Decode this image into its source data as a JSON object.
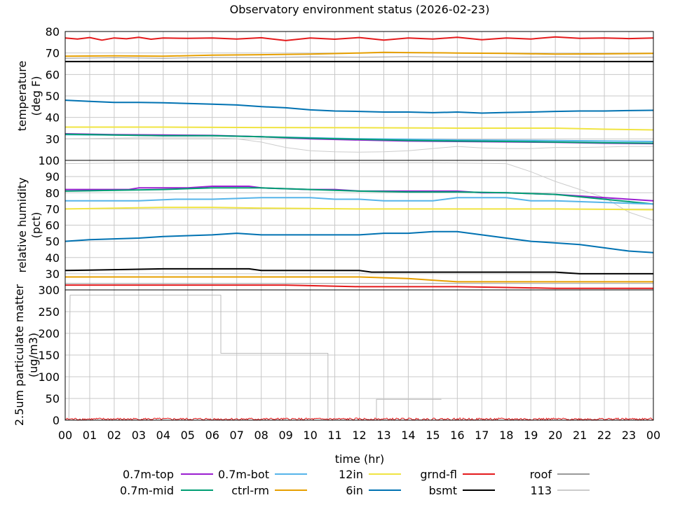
{
  "title": "Observatory environment status (2026-02-23)",
  "xlabel": "time (hr)",
  "x_ticks": [
    "00",
    "01",
    "02",
    "03",
    "04",
    "05",
    "06",
    "07",
    "08",
    "09",
    "10",
    "11",
    "12",
    "13",
    "14",
    "15",
    "16",
    "17",
    "18",
    "19",
    "20",
    "21",
    "22",
    "23",
    "00"
  ],
  "chart_data": [
    {
      "type": "line",
      "ylabel": [
        "temperature",
        "(deg F)"
      ],
      "ylim": [
        20,
        80
      ],
      "y_ticks": [
        30,
        40,
        50,
        60,
        70,
        80
      ],
      "grid": true,
      "series": [
        {
          "name": "grnd-fl",
          "color": "#e41a1c",
          "width": 2,
          "x": [
            0,
            0.5,
            1,
            1.5,
            2,
            2.5,
            3,
            3.5,
            4,
            5,
            6,
            7,
            8,
            9,
            10,
            11,
            12,
            13,
            14,
            15,
            16,
            17,
            18,
            19,
            20,
            21,
            22,
            23,
            24
          ],
          "y": [
            77,
            76.5,
            77.2,
            76,
            77,
            76.6,
            77.3,
            76.4,
            77,
            76.8,
            77,
            76.5,
            77.1,
            75.8,
            77,
            76.4,
            77.2,
            76,
            77,
            76.5,
            77.3,
            76.2,
            77,
            76.5,
            77.5,
            76.8,
            77,
            76.7,
            77
          ]
        },
        {
          "name": "ctrl-rm",
          "color": "#e69f00",
          "width": 2,
          "x": [
            0,
            2,
            4,
            6,
            8,
            10,
            12,
            13,
            14,
            16,
            18,
            20,
            22,
            24
          ],
          "y": [
            68.5,
            68.7,
            68.5,
            69,
            69.2,
            69.5,
            70,
            70.3,
            70.2,
            70,
            69.8,
            69.5,
            69.6,
            69.8
          ]
        },
        {
          "name": "roof",
          "color": "#999999",
          "width": 1,
          "x": [
            0,
            2,
            4,
            6,
            8,
            10,
            12,
            14,
            16,
            18,
            20,
            22,
            24
          ],
          "y": [
            67.5,
            67.8,
            67.5,
            67.9,
            67.8,
            68.2,
            68,
            68.3,
            68.1,
            68,
            68.2,
            68,
            68.1
          ]
        },
        {
          "name": "bsmt",
          "color": "#000000",
          "width": 2,
          "x": [
            0,
            4,
            8,
            12,
            16,
            20,
            24
          ],
          "y": [
            66,
            66,
            66,
            66,
            66,
            66,
            66
          ]
        },
        {
          "name": "6in",
          "color": "#0072b2",
          "width": 2,
          "x": [
            0,
            1,
            2,
            3,
            4,
            5,
            6,
            7,
            8,
            9,
            10,
            11,
            12,
            13,
            14,
            15,
            16,
            17,
            18,
            19,
            20,
            21,
            22,
            23,
            24
          ],
          "y": [
            48,
            47.5,
            47,
            47,
            46.8,
            46.5,
            46.2,
            45.8,
            45,
            44.5,
            43.5,
            43,
            42.8,
            42.5,
            42.5,
            42.2,
            42.5,
            42,
            42.3,
            42.5,
            42.8,
            43,
            43,
            43.2,
            43.3
          ]
        },
        {
          "name": "12in",
          "color": "#f0e442",
          "width": 2,
          "x": [
            0,
            4,
            8,
            12,
            16,
            20,
            22,
            24
          ],
          "y": [
            35.5,
            35.5,
            35.3,
            35.2,
            35,
            35,
            34.5,
            34.2
          ]
        },
        {
          "name": "0.7m-bot",
          "color": "#56b4e9",
          "width": 2,
          "x": [
            0,
            2,
            4,
            6,
            8,
            10,
            12,
            14,
            16,
            18,
            20,
            22,
            24
          ],
          "y": [
            32,
            31.8,
            31.5,
            31.5,
            31,
            30.5,
            30,
            29.8,
            29.5,
            29.4,
            29.2,
            29,
            28.8
          ]
        },
        {
          "name": "0.7m-top",
          "color": "#9b1fd1",
          "width": 2,
          "x": [
            0,
            2,
            4,
            6,
            8,
            10,
            12,
            14,
            16,
            18,
            20,
            22,
            24
          ],
          "y": [
            32.4,
            32,
            31.8,
            31.6,
            31,
            30,
            29.5,
            29,
            28.8,
            28.6,
            28.4,
            28,
            27.8
          ]
        },
        {
          "name": "0.7m-mid",
          "color": "#009e73",
          "width": 2,
          "x": [
            0,
            2,
            4,
            6,
            8,
            10,
            12,
            14,
            16,
            18,
            20,
            22,
            24
          ],
          "y": [
            32.2,
            31.8,
            31.5,
            31.5,
            31,
            30.3,
            29.8,
            29.3,
            29,
            28.8,
            28.5,
            28.2,
            28
          ]
        },
        {
          "name": "113",
          "color": "#cccccc",
          "width": 1,
          "x": [
            0,
            3,
            6,
            7,
            8,
            9,
            10,
            11,
            12,
            13,
            14,
            15,
            16,
            17,
            18,
            19,
            20,
            21,
            22,
            23,
            24
          ],
          "y": [
            30,
            30.5,
            30.5,
            30,
            28.5,
            26,
            24.5,
            24,
            23.8,
            24,
            24.5,
            25.5,
            26.5,
            25.8,
            25.5,
            25.5,
            26,
            26,
            26.2,
            26.5,
            26.5
          ]
        }
      ]
    },
    {
      "type": "line",
      "ylabel": [
        "relative humidity",
        "(pct)"
      ],
      "ylim": [
        20,
        100
      ],
      "y_ticks": [
        30,
        40,
        50,
        60,
        70,
        80,
        90,
        100
      ],
      "grid": true,
      "series": [
        {
          "name": "113",
          "color": "#cccccc",
          "width": 1,
          "x": [
            0,
            3,
            6,
            9,
            12,
            15,
            18,
            19,
            20,
            21,
            22,
            23,
            24
          ],
          "y": [
            98,
            98.5,
            98.5,
            98.5,
            98.5,
            98.5,
            98,
            93,
            87,
            82,
            77,
            68,
            63
          ]
        },
        {
          "name": "0.7m-top",
          "color": "#9b1fd1",
          "width": 2,
          "x": [
            0,
            2.6,
            3,
            5,
            6,
            7.5,
            8,
            10,
            11,
            12,
            13,
            14,
            16,
            17,
            18,
            20,
            21,
            22,
            23,
            24
          ],
          "y": [
            82,
            82,
            83,
            83,
            84,
            84,
            83,
            82,
            82,
            81,
            81,
            81,
            81,
            80,
            80,
            79,
            78,
            77,
            76,
            75
          ]
        },
        {
          "name": "0.7m-mid",
          "color": "#009e73",
          "width": 2,
          "x": [
            0,
            2,
            4,
            6,
            8,
            10,
            12,
            14,
            16,
            18,
            20,
            22,
            24
          ],
          "y": [
            81,
            81.5,
            82,
            83,
            83,
            82,
            81,
            80.5,
            80.5,
            80,
            79,
            76,
            73
          ]
        },
        {
          "name": "0.7m-bot",
          "color": "#56b4e9",
          "width": 2,
          "x": [
            0,
            3,
            4.5,
            6,
            8,
            10,
            11,
            12,
            13,
            15,
            16,
            18,
            19,
            20,
            22,
            24
          ],
          "y": [
            75,
            75,
            76,
            76,
            77,
            77,
            76,
            76,
            75,
            75,
            77,
            77,
            75,
            75,
            74,
            73
          ]
        },
        {
          "name": "12in",
          "color": "#f0e442",
          "width": 2,
          "x": [
            0,
            4,
            6,
            8,
            12,
            16,
            20,
            24
          ],
          "y": [
            70,
            71,
            71,
            70.5,
            70,
            70,
            70,
            69.5
          ]
        },
        {
          "name": "6in",
          "color": "#0072b2",
          "width": 2,
          "x": [
            0,
            1,
            3,
            4,
            6,
            7,
            8,
            10,
            12,
            13,
            14,
            15,
            16,
            17,
            18,
            19,
            20,
            21,
            22,
            23,
            24
          ],
          "y": [
            50,
            51,
            52,
            53,
            54,
            55,
            54,
            54,
            54,
            55,
            55,
            56,
            56,
            54,
            52,
            50,
            49,
            48,
            46,
            44,
            43
          ]
        },
        {
          "name": "bsmt",
          "color": "#000000",
          "width": 2,
          "x": [
            0,
            4,
            7.5,
            8,
            12,
            12.5,
            16,
            20,
            21,
            22,
            24
          ],
          "y": [
            32,
            33,
            33,
            32,
            32,
            31,
            31,
            31,
            30,
            30,
            30
          ]
        },
        {
          "name": "ctrl-rm",
          "color": "#e69f00",
          "width": 2,
          "x": [
            0,
            4,
            8,
            12,
            14,
            15,
            16,
            18,
            20,
            22,
            24
          ],
          "y": [
            28,
            28,
            28,
            28,
            27,
            26,
            25,
            25,
            25,
            25,
            25
          ]
        },
        {
          "name": "roof",
          "color": "#999999",
          "width": 1,
          "x": [
            0,
            6,
            12,
            16,
            20,
            22,
            24
          ],
          "y": [
            24,
            24,
            24,
            24,
            24,
            24,
            24
          ]
        },
        {
          "name": "grnd-fl",
          "color": "#e41a1c",
          "width": 2,
          "x": [
            0,
            3,
            6,
            9,
            12,
            13,
            16,
            18,
            20,
            22,
            24
          ],
          "y": [
            23,
            23,
            23,
            23,
            22,
            22,
            22,
            21.5,
            21,
            21,
            21
          ]
        }
      ]
    },
    {
      "type": "line",
      "ylabel": [
        "2.5um particulate matter",
        "(ug/m3)"
      ],
      "ylim": [
        0,
        300
      ],
      "y_ticks": [
        0,
        50,
        100,
        150,
        200,
        250,
        300
      ],
      "grid": true,
      "series": [
        {
          "name": "113",
          "color": "#bbbbbb",
          "width": 1,
          "steps": [
            [
              0.15,
              0
            ],
            [
              0.2,
              288
            ],
            [
              6.35,
              288
            ],
            [
              6.35,
              154
            ],
            [
              10.72,
              154
            ],
            [
              10.72,
              0
            ],
            [
              12.7,
              0
            ],
            [
              12.7,
              48
            ],
            [
              15.35,
              48
            ]
          ]
        },
        {
          "name": "grnd-fl",
          "color": "#e41a1c",
          "width": 1,
          "noise": 5
        }
      ]
    }
  ],
  "legend": [
    {
      "label": "0.7m-top",
      "color": "#9b1fd1"
    },
    {
      "label": "0.7m-mid",
      "color": "#009e73"
    },
    {
      "label": "0.7m-bot",
      "color": "#56b4e9"
    },
    {
      "label": "ctrl-rm",
      "color": "#e69f00"
    },
    {
      "label": "12in",
      "color": "#f0e442"
    },
    {
      "label": "6in",
      "color": "#0072b2"
    },
    {
      "label": "grnd-fl",
      "color": "#e41a1c"
    },
    {
      "label": "bsmt",
      "color": "#000000"
    },
    {
      "label": "roof",
      "color": "#999999"
    },
    {
      "label": "113",
      "color": "#cccccc"
    }
  ]
}
